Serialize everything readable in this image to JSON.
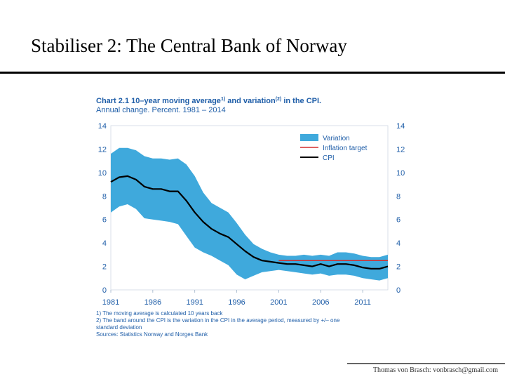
{
  "slide": {
    "title": "Stabiliser 2: The Central Bank of Norway",
    "footer": "Thomas von Brasch: vonbrasch@gmail.com"
  },
  "chart_head": {
    "prefix": "Chart 2.1 10–year moving average",
    "sup1": "1)",
    "mid": " and variation",
    "sup2": "(2)",
    "suffix": " in the CPI.",
    "line2": "Annual change. Percent. 1981 – 2014"
  },
  "footnotes": [
    "1) The moving average is calculated 10 years back",
    "2) The band around the CPI is the variation in the CPI in the average period, measured by +/– one",
    "standard deviation",
    "Sources: Statistics Norway and Norges Bank"
  ],
  "chart_data": {
    "type": "area",
    "xlim": [
      1981,
      2014
    ],
    "ylim": [
      0,
      14
    ],
    "y_ticks": [
      0,
      2,
      4,
      6,
      8,
      10,
      12,
      14
    ],
    "x_tick_labels": [
      {
        "year": 1981,
        "label": "1981"
      },
      {
        "year": 1986,
        "label": "1986"
      },
      {
        "year": 1991,
        "label": "1991"
      },
      {
        "year": 1996,
        "label": "1996"
      },
      {
        "year": 2001,
        "label": "2001"
      },
      {
        "year": 2006,
        "label": "2006"
      },
      {
        "year": 2011,
        "label": "2011"
      }
    ],
    "colors": {
      "band": "#3fa9dc",
      "target": "#d32f2f",
      "cpi": "#000000",
      "axis_text": "#1f5ea8"
    },
    "legend": {
      "position": "top-right",
      "items": [
        {
          "key": "band",
          "label": "Variation"
        },
        {
          "key": "target",
          "label": "Inflation target"
        },
        {
          "key": "cpi",
          "label": "CPI"
        }
      ]
    },
    "series": [
      {
        "name": "CPI",
        "x": [
          1981,
          1982,
          1983,
          1984,
          1985,
          1986,
          1987,
          1988,
          1989,
          1990,
          1991,
          1992,
          1993,
          1994,
          1995,
          1996,
          1997,
          1998,
          1999,
          2000,
          2001,
          2002,
          2003,
          2004,
          2005,
          2006,
          2007,
          2008,
          2009,
          2010,
          2011,
          2012,
          2013,
          2014
        ],
        "values": [
          9.2,
          9.6,
          9.7,
          9.4,
          8.8,
          8.6,
          8.6,
          8.4,
          8.4,
          7.6,
          6.6,
          5.8,
          5.2,
          4.8,
          4.5,
          3.9,
          3.3,
          2.8,
          2.5,
          2.4,
          2.3,
          2.2,
          2.2,
          2.1,
          2.0,
          2.2,
          2.0,
          2.2,
          2.2,
          2.1,
          1.9,
          1.8,
          1.8,
          2.0
        ]
      },
      {
        "name": "Variation upper",
        "x": [
          1981,
          1982,
          1983,
          1984,
          1985,
          1986,
          1987,
          1988,
          1989,
          1990,
          1991,
          1992,
          1993,
          1994,
          1995,
          1996,
          1997,
          1998,
          1999,
          2000,
          2001,
          2002,
          2003,
          2004,
          2005,
          2006,
          2007,
          2008,
          2009,
          2010,
          2011,
          2012,
          2013,
          2014
        ],
        "values": [
          11.6,
          12.1,
          12.1,
          11.9,
          11.4,
          11.2,
          11.2,
          11.1,
          11.2,
          10.7,
          9.7,
          8.3,
          7.4,
          7.0,
          6.6,
          5.7,
          4.7,
          3.9,
          3.5,
          3.2,
          3.0,
          2.9,
          2.9,
          3.0,
          2.9,
          3.0,
          2.9,
          3.2,
          3.2,
          3.1,
          2.9,
          2.8,
          2.8,
          3.0
        ]
      },
      {
        "name": "Variation lower",
        "x": [
          1981,
          1982,
          1983,
          1984,
          1985,
          1986,
          1987,
          1988,
          1989,
          1990,
          1991,
          1992,
          1993,
          1994,
          1995,
          1996,
          1997,
          1998,
          1999,
          2000,
          2001,
          2002,
          2003,
          2004,
          2005,
          2006,
          2007,
          2008,
          2009,
          2010,
          2011,
          2012,
          2013,
          2014
        ],
        "values": [
          6.6,
          7.1,
          7.3,
          6.9,
          6.1,
          6.0,
          5.9,
          5.8,
          5.6,
          4.6,
          3.6,
          3.2,
          2.9,
          2.5,
          2.1,
          1.3,
          0.9,
          1.2,
          1.5,
          1.6,
          1.7,
          1.6,
          1.5,
          1.4,
          1.3,
          1.4,
          1.2,
          1.3,
          1.3,
          1.2,
          1.0,
          0.9,
          0.8,
          1.0
        ]
      },
      {
        "name": "Inflation target",
        "x": [
          2001,
          2014
        ],
        "values": [
          2.5,
          2.5
        ]
      }
    ]
  }
}
